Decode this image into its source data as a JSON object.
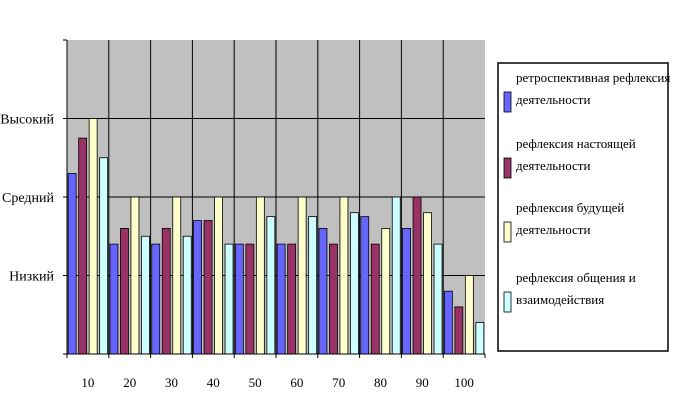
{
  "chart_data": {
    "type": "bar",
    "categories": [
      "10",
      "20",
      "30",
      "40",
      "50",
      "60",
      "70",
      "80",
      "90",
      "100"
    ],
    "y_tick_labels": [
      {
        "label": "Высокий",
        "value": 3
      },
      {
        "label": "Средний",
        "value": 2
      },
      {
        "label": "Низкий",
        "value": 1
      }
    ],
    "ylim": [
      0,
      4
    ],
    "grid": true,
    "legend_position": "right",
    "plot_background": "#c0c0c0",
    "series": [
      {
        "name": "ретроспективная рефлексия деятельности",
        "color": "#6666ff",
        "values": [
          2.3,
          1.4,
          1.4,
          1.7,
          1.4,
          1.4,
          1.6,
          1.75,
          1.6,
          0.8
        ]
      },
      {
        "name": "рефлексия настоящей деятельности",
        "color": "#993366",
        "values": [
          2.75,
          1.6,
          1.6,
          1.7,
          1.4,
          1.4,
          1.4,
          1.4,
          2.0,
          0.6
        ]
      },
      {
        "name": "рефлексия будущей деятельности",
        "color": "#ffffcc",
        "values": [
          3.0,
          2.0,
          2.0,
          2.0,
          2.0,
          2.0,
          2.0,
          1.6,
          1.8,
          1.0
        ]
      },
      {
        "name": "рефлексия общения и взаимодействия",
        "color": "#ccffff",
        "values": [
          2.5,
          1.5,
          1.5,
          1.4,
          1.75,
          1.75,
          1.8,
          2.0,
          1.4,
          0.4
        ]
      }
    ]
  }
}
